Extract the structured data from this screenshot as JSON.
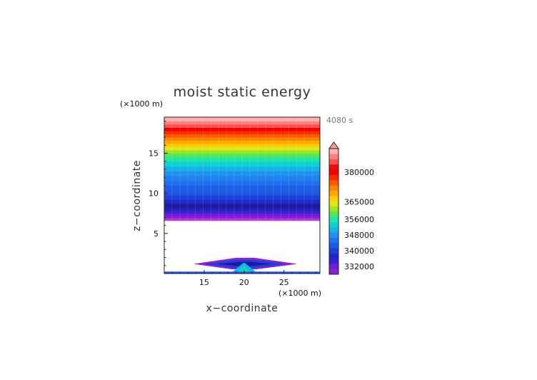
{
  "chart_data": {
    "type": "heatmap",
    "title": "moist static energy",
    "xlabel": "x−coordinate",
    "ylabel": "z−coordinate",
    "x_unit": "(×1000 m)",
    "y_unit": "(×1000 m)",
    "time_label": "4080 s",
    "xlim": [
      10,
      29.5
    ],
    "ylim": [
      0,
      19.5
    ],
    "x_ticks": [
      15,
      20,
      25
    ],
    "x_tick_labels": [
      "15",
      "20",
      "25"
    ],
    "y_ticks": [
      5,
      10,
      15
    ],
    "y_tick_labels": [
      "5",
      "10",
      "15"
    ],
    "colorbar": {
      "tick_values": [
        380000,
        365000,
        356000,
        348000,
        340000,
        332000
      ],
      "tick_labels": [
        "380000",
        "365000",
        "356000",
        "348000",
        "340000",
        "332000"
      ],
      "extend": "max",
      "colors": [
        "#8b1fd1",
        "#6a1fd8",
        "#3b1fd8",
        "#1f28c8",
        "#1f3fd6",
        "#1f58e4",
        "#1f72ee",
        "#1f92ef",
        "#17b3e6",
        "#0fd3ce",
        "#1fe6a4",
        "#57e657",
        "#9fe61f",
        "#dfe61f",
        "#ffcc00",
        "#ffa800",
        "#ff8400",
        "#ff5a00",
        "#ff2a00",
        "#f00000",
        "#e81010",
        "#ff5050",
        "#ff8080",
        "#ffb0b0"
      ],
      "extend_color": "#f7a0a0"
    },
    "layers": [
      {
        "z0": 6.6,
        "z1": 6.9,
        "color": "#b13ad8"
      },
      {
        "z0": 6.9,
        "z1": 7.2,
        "color": "#8b1fd1"
      },
      {
        "z0": 7.2,
        "z1": 7.5,
        "color": "#6a1fd8"
      },
      {
        "z0": 7.5,
        "z1": 7.8,
        "color": "#3b1fd8"
      },
      {
        "z0": 7.8,
        "z1": 8.2,
        "color": "#2a1fb8"
      },
      {
        "z0": 8.2,
        "z1": 8.7,
        "color": "#1a1a9e"
      },
      {
        "z0": 8.7,
        "z1": 9.2,
        "color": "#1f28c8"
      },
      {
        "z0": 9.2,
        "z1": 9.8,
        "color": "#1f3fd6"
      },
      {
        "z0": 9.8,
        "z1": 10.4,
        "color": "#1f58e4"
      },
      {
        "z0": 10.4,
        "z1": 11.0,
        "color": "#1f5fe8"
      },
      {
        "z0": 11.0,
        "z1": 11.6,
        "color": "#1f72ee"
      },
      {
        "z0": 11.6,
        "z1": 12.2,
        "color": "#1f82f0"
      },
      {
        "z0": 12.2,
        "z1": 12.8,
        "color": "#1f92ef"
      },
      {
        "z0": 12.8,
        "z1": 13.4,
        "color": "#17b3e6"
      },
      {
        "z0": 13.4,
        "z1": 14.0,
        "color": "#0fd3ce"
      },
      {
        "z0": 14.0,
        "z1": 14.5,
        "color": "#1fe6a4"
      },
      {
        "z0": 14.5,
        "z1": 15.0,
        "color": "#57e657"
      },
      {
        "z0": 15.0,
        "z1": 15.4,
        "color": "#9fe61f"
      },
      {
        "z0": 15.4,
        "z1": 15.8,
        "color": "#dfe61f"
      },
      {
        "z0": 15.8,
        "z1": 16.2,
        "color": "#ffcc00"
      },
      {
        "z0": 16.2,
        "z1": 16.6,
        "color": "#ffa800"
      },
      {
        "z0": 16.6,
        "z1": 17.0,
        "color": "#ff8400"
      },
      {
        "z0": 17.0,
        "z1": 17.4,
        "color": "#ff5a00"
      },
      {
        "z0": 17.4,
        "z1": 17.8,
        "color": "#ff2a00"
      },
      {
        "z0": 17.8,
        "z1": 18.2,
        "color": "#f00000"
      },
      {
        "z0": 18.2,
        "z1": 18.6,
        "color": "#ff5050"
      },
      {
        "z0": 18.6,
        "z1": 19.0,
        "color": "#ff8080"
      },
      {
        "z0": 19.0,
        "z1": 19.5,
        "color": "#ffb0b0"
      }
    ],
    "surface_feature": [
      {
        "name": "outer-purple",
        "color": "#8b1fd1",
        "points": [
          [
            13.8,
            1.2
          ],
          [
            19.0,
            1.95
          ],
          [
            21.2,
            1.95
          ],
          [
            26.5,
            1.2
          ],
          [
            21.5,
            0.55
          ],
          [
            18.5,
            0.55
          ]
        ]
      },
      {
        "name": "blue-ring",
        "color": "#1f3fd6",
        "points": [
          [
            15.2,
            1.2
          ],
          [
            19.2,
            1.7
          ],
          [
            21.0,
            1.7
          ],
          [
            25.0,
            1.2
          ],
          [
            21.2,
            0.7
          ],
          [
            18.8,
            0.7
          ]
        ]
      },
      {
        "name": "dark-core",
        "color": "#1a1a9e",
        "points": [
          [
            16.8,
            1.2
          ],
          [
            19.5,
            1.45
          ],
          [
            20.7,
            1.45
          ],
          [
            23.2,
            1.2
          ],
          [
            20.8,
            0.95
          ],
          [
            19.2,
            0.95
          ]
        ]
      },
      {
        "name": "plume-cyan",
        "color": "#17b3e6",
        "points": [
          [
            18.3,
            0.0
          ],
          [
            19.4,
            0.9
          ],
          [
            20.0,
            1.35
          ],
          [
            20.6,
            0.9
          ],
          [
            21.7,
            0.0
          ]
        ]
      },
      {
        "name": "plume-teal",
        "color": "#0fd3ce",
        "points": [
          [
            18.9,
            0.0
          ],
          [
            19.6,
            0.6
          ],
          [
            20.0,
            0.95
          ],
          [
            20.4,
            0.6
          ],
          [
            21.1,
            0.0
          ]
        ]
      },
      {
        "name": "plume-green",
        "color": "#57e657",
        "points": [
          [
            19.4,
            0.0
          ],
          [
            19.8,
            0.3
          ],
          [
            20.0,
            0.45
          ],
          [
            20.2,
            0.3
          ],
          [
            20.6,
            0.0
          ]
        ]
      },
      {
        "name": "surface-layer",
        "color": "#1f58e4",
        "points": [
          [
            10,
            0.0
          ],
          [
            29.5,
            0.0
          ],
          [
            29.5,
            0.22
          ],
          [
            10,
            0.22
          ]
        ]
      }
    ]
  }
}
